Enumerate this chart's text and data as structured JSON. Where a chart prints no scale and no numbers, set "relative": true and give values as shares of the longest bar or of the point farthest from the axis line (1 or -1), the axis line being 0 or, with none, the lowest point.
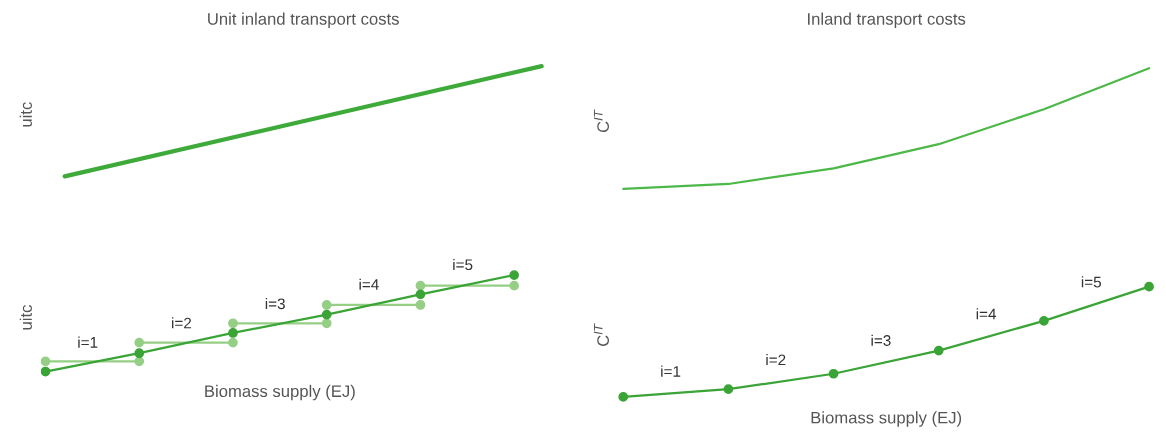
{
  "chart_data": [
    {
      "type": "line",
      "title": "Unit inland transport costs",
      "ylabel": "uitc",
      "relative": true,
      "categories": [
        null,
        null
      ],
      "grid": false,
      "tick_labels": false,
      "marker": "none",
      "line_style": "solid",
      "series": [
        {
          "color": "#3daa3a",
          "values": [
            0,
            1
          ]
        }
      ]
    },
    {
      "type": "line",
      "title": "Inland transport costs",
      "ylabel": "C$^{IT}$",
      "relative": true,
      "categories": [
        null,
        null,
        null,
        null,
        null,
        null
      ],
      "grid": false,
      "tick_labels": false,
      "marker": "none",
      "line_style": "solid",
      "series": [
        {
          "color": "#4cb848",
          "values": [
            0,
            0.04,
            0.17,
            0.37,
            0.66,
            1
          ]
        }
      ]
    },
    {
      "type": "line",
      "xlabel": "Biomass supply (EJ)",
      "ylabel": "uitc",
      "relative": true,
      "categories": [
        null,
        null,
        null,
        null,
        null,
        null
      ],
      "grid": false,
      "tick_labels": false,
      "marker": "circle",
      "line_style": "solid",
      "series": [
        {
          "color": "#95cf85",
          "values": [
            0.106,
            0.106,
            null,
            null,
            null,
            null
          ]
        },
        {
          "color": "#95cf85",
          "values": [
            null,
            0.3,
            0.3,
            null,
            null,
            null
          ]
        },
        {
          "color": "#95cf85",
          "values": [
            null,
            null,
            0.5,
            0.5,
            null,
            null
          ]
        },
        {
          "color": "#95cf85",
          "values": [
            null,
            null,
            null,
            0.69,
            0.69,
            null
          ]
        },
        {
          "color": "#95cf85",
          "values": [
            null,
            null,
            null,
            null,
            0.89,
            0.89
          ]
        },
        {
          "color": "#3aa436",
          "values": [
            0,
            0.19,
            0.4,
            0.59,
            0.8,
            1
          ]
        }
      ],
      "annotations": [
        "i=1",
        "i=2",
        "i=3",
        "i=4",
        "i=5"
      ]
    },
    {
      "type": "line",
      "xlabel": "Biomass supply (EJ)",
      "ylabel": "C$^{IT}$",
      "relative": true,
      "categories": [
        null,
        null,
        null,
        null,
        null,
        null
      ],
      "grid": false,
      "tick_labels": false,
      "marker": "circle",
      "line_style": "solid",
      "series": [
        {
          "color": "#3aa436",
          "values": [
            0,
            0.07,
            0.21,
            0.42,
            0.69,
            1
          ]
        }
      ],
      "annotations": [
        "i=1",
        "i=2",
        "i=3",
        "i=4",
        "i=5"
      ]
    }
  ]
}
